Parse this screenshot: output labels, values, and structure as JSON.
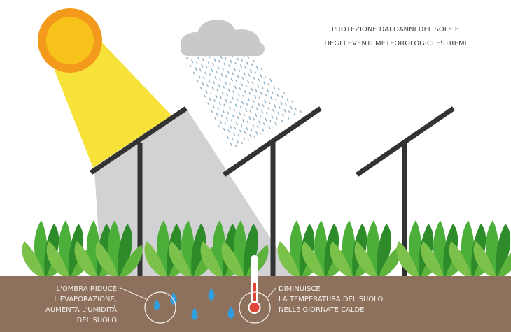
{
  "title": {
    "lines": [
      "PROTEZIONE DAI DANNI DEL SOLE E",
      "DEGLI EVENTI METEOROLOGICI ESTREMI"
    ]
  },
  "left_caption": {
    "lines": [
      "L'OMBRA RIDUCE",
      "L'EVAPORAZIONE,",
      "AUMENTA L'UMIDITÀ",
      "DEL SUOLO"
    ]
  },
  "right_caption": {
    "lines": [
      "DIMINUISCE",
      "LA TEMPERATURA DEL SUOLO",
      "NELLE GIORNATE CALDE"
    ]
  }
}
